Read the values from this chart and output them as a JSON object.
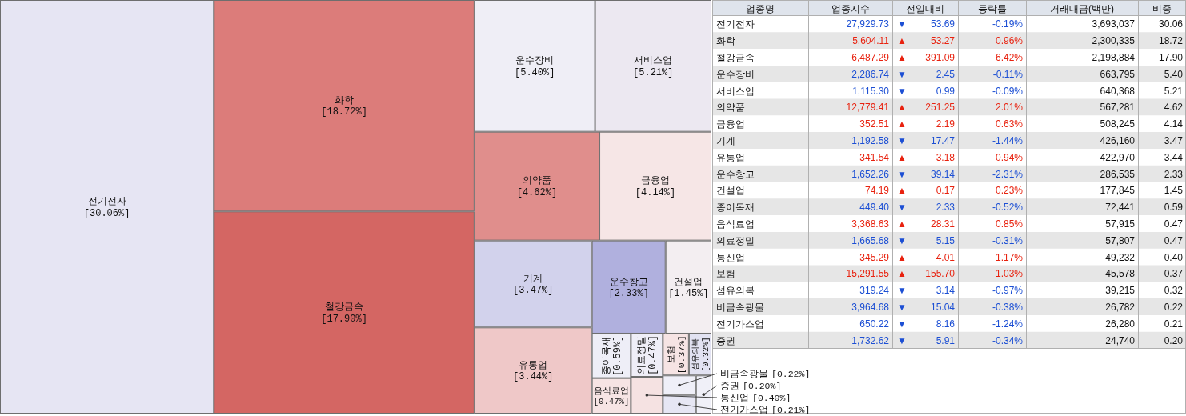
{
  "chart_data": [
    {
      "type": "other",
      "categories": [
        "전기전자",
        "화학",
        "철강금속",
        "운수장비",
        "서비스업",
        "의약품",
        "금융업",
        "기계",
        "유통업",
        "운수창고",
        "건설업",
        "종이목재",
        "음식료업",
        "의료정밀",
        "통신업",
        "보험",
        "섬유의복",
        "비금속광물",
        "전기가스업",
        "증권"
      ],
      "values": [
        30.06,
        18.72,
        17.9,
        5.4,
        5.21,
        4.62,
        4.14,
        3.47,
        3.44,
        2.33,
        1.45,
        0.59,
        0.47,
        0.47,
        0.4,
        0.37,
        0.32,
        0.22,
        0.21,
        0.2
      ],
      "value_labels": [
        "[30.06%]",
        "[18.72%]",
        "[17.90%]",
        "[5.40%]",
        "[5.21%]",
        "[4.62%]",
        "[4.14%]",
        "[3.47%]",
        "[3.44%]",
        "[2.33%]",
        "[1.45%]",
        "[0.59%]",
        "[0.47%]",
        "[0.47%]",
        "[0.40%]",
        "[0.37%]",
        "[0.32%]",
        "[0.22%]",
        "[0.21%]",
        "[0.20%]"
      ],
      "colors": [
        "#e6e5f3",
        "#dc7c7a",
        "#d46663",
        "#efeef6",
        "#ece8f1",
        "#e08e8c",
        "#f6e6e6",
        "#d2d2ec",
        "#efc8c8",
        "#b0b0de",
        "#f3eef1",
        "#eeeef7",
        "#f6e4e4",
        "#efeef7",
        "#f5e2e2",
        "#f6e4e4",
        "#e2e2f2",
        "#efeff8",
        "#e6e6f4",
        "#f0f0f8"
      ]
    },
    {
      "type": "other",
      "xlabel": "업종명",
      "categories": [
        "전기전자",
        "화학",
        "철강금속",
        "운수장비",
        "서비스업",
        "의약품",
        "금융업",
        "기계",
        "유통업",
        "운수창고",
        "건설업",
        "종이목재",
        "음식료업",
        "의료정밀",
        "통신업",
        "보험",
        "섬유의복",
        "비금속광물",
        "전기가스업",
        "증권"
      ],
      "annotations": [
        "▼",
        "▲",
        "▲",
        "▼",
        "▼",
        "▲",
        "▲",
        "▼",
        "▲",
        "▼",
        "▲",
        "▼",
        "▲",
        "▼",
        "▲",
        "▲",
        "▼",
        "▼",
        "▼",
        "▼"
      ],
      "series": [
        {
          "name": "업종지수",
          "values": [
            27929.73,
            5604.11,
            6487.29,
            2286.74,
            1115.3,
            12779.41,
            352.51,
            1192.58,
            341.54,
            1652.26,
            74.19,
            449.4,
            3368.63,
            1665.68,
            345.29,
            15291.55,
            319.24,
            3964.68,
            650.22,
            1732.62
          ],
          "value_labels": [
            "27,929.73",
            "5,604.11",
            "6,487.29",
            "2,286.74",
            "1,115.30",
            "12,779.41",
            "352.51",
            "1,192.58",
            "341.54",
            "1,652.26",
            "74.19",
            "449.40",
            "3,368.63",
            "1,665.68",
            "345.29",
            "15,291.55",
            "319.24",
            "3,964.68",
            "650.22",
            "1,732.62"
          ],
          "colors": [
            "#1c4fd4",
            "#e8220f",
            "#e8220f",
            "#1c4fd4",
            "#1c4fd4",
            "#e8220f",
            "#e8220f",
            "#1c4fd4",
            "#e8220f",
            "#1c4fd4",
            "#e8220f",
            "#1c4fd4",
            "#e8220f",
            "#1c4fd4",
            "#e8220f",
            "#e8220f",
            "#1c4fd4",
            "#1c4fd4",
            "#1c4fd4",
            "#1c4fd4"
          ]
        },
        {
          "name": "전일대비",
          "values": [
            53.69,
            53.27,
            391.09,
            2.45,
            0.99,
            251.25,
            2.19,
            17.47,
            3.18,
            39.14,
            0.17,
            2.33,
            28.31,
            5.15,
            4.01,
            155.7,
            3.14,
            15.04,
            8.16,
            5.91
          ],
          "value_labels": [
            "53.69",
            "53.27",
            "391.09",
            "2.45",
            "0.99",
            "251.25",
            "2.19",
            "17.47",
            "3.18",
            "39.14",
            "0.17",
            "2.33",
            "28.31",
            "5.15",
            "4.01",
            "155.70",
            "3.14",
            "15.04",
            "8.16",
            "5.91"
          ],
          "colors": [
            "#1c4fd4",
            "#e8220f",
            "#e8220f",
            "#1c4fd4",
            "#1c4fd4",
            "#e8220f",
            "#e8220f",
            "#1c4fd4",
            "#e8220f",
            "#1c4fd4",
            "#e8220f",
            "#1c4fd4",
            "#e8220f",
            "#1c4fd4",
            "#e8220f",
            "#e8220f",
            "#1c4fd4",
            "#1c4fd4",
            "#1c4fd4",
            "#1c4fd4"
          ]
        },
        {
          "name": "등락률",
          "values": [
            -0.19,
            0.96,
            6.42,
            -0.11,
            -0.09,
            2.01,
            0.63,
            -1.44,
            0.94,
            -2.31,
            0.23,
            -0.52,
            0.85,
            -0.31,
            1.17,
            1.03,
            -0.97,
            -0.38,
            -1.24,
            -0.34
          ],
          "value_labels": [
            "-0.19%",
            "0.96%",
            "6.42%",
            "-0.11%",
            "-0.09%",
            "2.01%",
            "0.63%",
            "-1.44%",
            "0.94%",
            "-2.31%",
            "0.23%",
            "-0.52%",
            "0.85%",
            "-0.31%",
            "1.17%",
            "1.03%",
            "-0.97%",
            "-0.38%",
            "-1.24%",
            "-0.34%"
          ],
          "colors": [
            "#1c4fd4",
            "#e8220f",
            "#e8220f",
            "#1c4fd4",
            "#1c4fd4",
            "#e8220f",
            "#e8220f",
            "#1c4fd4",
            "#e8220f",
            "#1c4fd4",
            "#e8220f",
            "#1c4fd4",
            "#e8220f",
            "#1c4fd4",
            "#e8220f",
            "#e8220f",
            "#1c4fd4",
            "#1c4fd4",
            "#1c4fd4",
            "#1c4fd4"
          ]
        },
        {
          "name": "거래대금(백만)",
          "color": "#111111",
          "values": [
            3693037,
            2300335,
            2198884,
            663795,
            640368,
            567281,
            508245,
            426160,
            422970,
            286535,
            177845,
            72441,
            57915,
            57807,
            49232,
            45578,
            39215,
            26782,
            26280,
            24740
          ],
          "value_labels": [
            "3,693,037",
            "2,300,335",
            "2,198,884",
            "663,795",
            "640,368",
            "567,281",
            "508,245",
            "426,160",
            "422,970",
            "286,535",
            "177,845",
            "72,441",
            "57,915",
            "57,807",
            "49,232",
            "45,578",
            "39,215",
            "26,782",
            "26,280",
            "24,740"
          ]
        },
        {
          "name": "비중",
          "color": "#111111",
          "values": [
            30.06,
            18.72,
            17.9,
            5.4,
            5.21,
            4.62,
            4.14,
            3.47,
            3.44,
            2.33,
            1.45,
            0.59,
            0.47,
            0.47,
            0.4,
            0.37,
            0.32,
            0.22,
            0.21,
            0.2
          ],
          "value_labels": [
            "30.06",
            "18.72",
            "17.90",
            "5.40",
            "5.21",
            "4.62",
            "4.14",
            "3.47",
            "3.44",
            "2.33",
            "1.45",
            "0.59",
            "0.47",
            "0.47",
            "0.40",
            "0.37",
            "0.32",
            "0.22",
            "0.21",
            "0.20"
          ]
        }
      ]
    }
  ]
}
